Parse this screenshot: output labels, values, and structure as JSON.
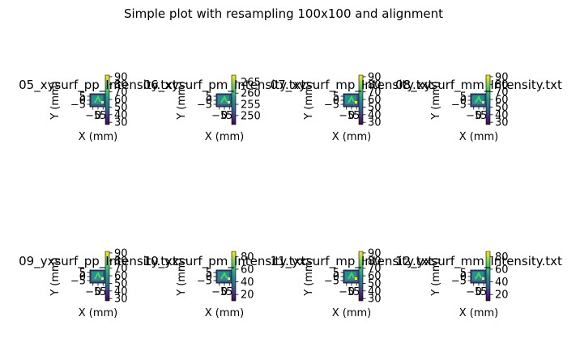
{
  "chart_data": {
    "type": "heatmap",
    "title": "Simple plot with resampling 100x100 and alignment",
    "panels": [
      {
        "title": "05_xysurf_pp_Intensity.txt",
        "xlabel": "X (mm)",
        "ylabel": "Y (mm)",
        "x_ticks": [
          "-5",
          "0",
          "5"
        ],
        "y_ticks": [
          "5",
          "0",
          "-5"
        ],
        "colorbar_ticks": [
          "90",
          "80",
          "70",
          "60",
          "50",
          "40",
          "30"
        ],
        "clim": [
          27,
          92
        ]
      },
      {
        "title": "06_xysurf_pm_Intensity.txt",
        "xlabel": "X (mm)",
        "ylabel": "Y (mm)",
        "x_ticks": [
          "-5",
          "0",
          "5"
        ],
        "y_ticks": [
          "5",
          "0",
          "-5"
        ],
        "colorbar_ticks": [
          "265",
          "260",
          "255",
          "250"
        ],
        "clim": [
          246,
          268
        ]
      },
      {
        "title": "07_xysurf_mp_Intensity.txt",
        "xlabel": "X (mm)",
        "ylabel": "Y (mm)",
        "x_ticks": [
          "-5",
          "0",
          "5"
        ],
        "y_ticks": [
          "5",
          "0",
          "-5"
        ],
        "colorbar_ticks": [
          "90",
          "80",
          "70",
          "60",
          "50",
          "40",
          "30"
        ],
        "clim": [
          27,
          92
        ]
      },
      {
        "title": "08_xysurf_mm_Intensity.txt",
        "xlabel": "X (mm)",
        "ylabel": "Y (mm)",
        "x_ticks": [
          "-5",
          "0",
          "5"
        ],
        "y_ticks": [
          "5",
          "0",
          "-5"
        ],
        "colorbar_ticks": [
          "90",
          "80",
          "70",
          "60",
          "50",
          "40",
          "30"
        ],
        "clim": [
          27,
          92
        ]
      },
      {
        "title": "09_yxsurf_pp_Intensity.txt",
        "xlabel": "X (mm)",
        "ylabel": "Y (mm)",
        "x_ticks": [
          "-5",
          "0",
          "5"
        ],
        "y_ticks": [
          "5",
          "0",
          "-5"
        ],
        "colorbar_ticks": [
          "90",
          "80",
          "70",
          "60",
          "50",
          "40",
          "30"
        ],
        "clim": [
          27,
          92
        ]
      },
      {
        "title": "10_yxsurf_pm_Intensity.txt",
        "xlabel": "X (mm)",
        "ylabel": "Y (mm)",
        "x_ticks": [
          "-5",
          "0",
          "5"
        ],
        "y_ticks": [
          "5",
          "0",
          "-5"
        ],
        "colorbar_ticks": [
          "80",
          "60",
          "40",
          "20"
        ],
        "clim": [
          10,
          88
        ]
      },
      {
        "title": "11_yxsurf_mp_Intensity.txt",
        "xlabel": "X (mm)",
        "ylabel": "Y (mm)",
        "x_ticks": [
          "-5",
          "0",
          "5"
        ],
        "y_ticks": [
          "5",
          "0",
          "-5"
        ],
        "colorbar_ticks": [
          "90",
          "80",
          "70",
          "60",
          "50",
          "40",
          "30"
        ],
        "clim": [
          27,
          92
        ]
      },
      {
        "title": "12_yxsurf_mm_Intensity.txt",
        "xlabel": "X (mm)",
        "ylabel": "Y (mm)",
        "x_ticks": [
          "-5",
          "0",
          "5"
        ],
        "y_ticks": [
          "5",
          "0",
          "-5"
        ],
        "colorbar_ticks": [
          "80",
          "60",
          "40",
          "20"
        ],
        "clim": [
          10,
          88
        ]
      }
    ],
    "xlim": [
      -8,
      8
    ],
    "ylim": [
      -8,
      8
    ],
    "colormap": "viridis",
    "colormap_colors": [
      "#440154",
      "#3b528b",
      "#21918c",
      "#5ec962",
      "#fde725"
    ],
    "grid": false
  }
}
